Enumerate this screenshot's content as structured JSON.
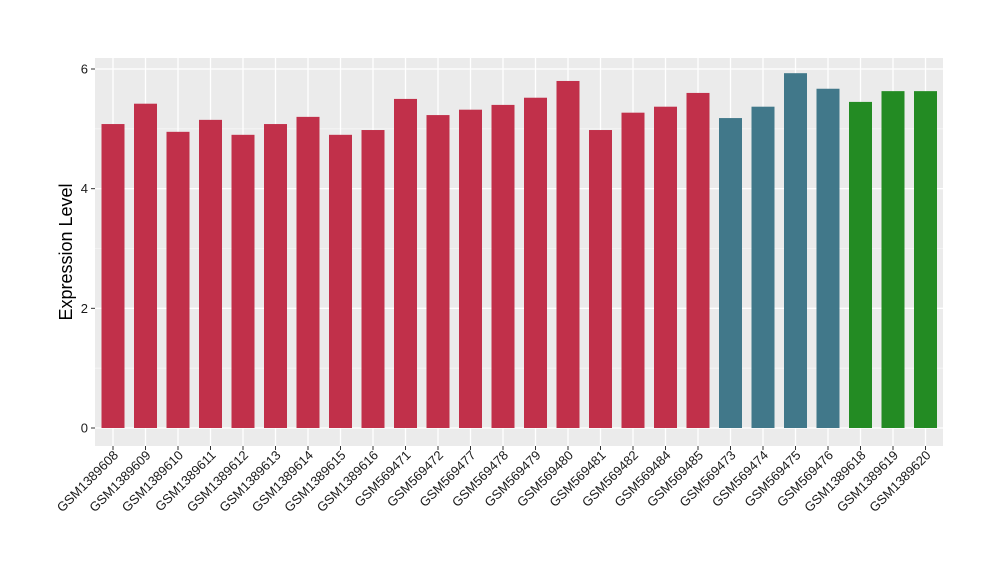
{
  "chart_data": {
    "type": "bar",
    "ylabel": "Expression Level",
    "xlabel": "",
    "ylim": [
      0,
      6.2
    ],
    "yticks": [
      0,
      2,
      4,
      6
    ],
    "grid": true,
    "legend": "none",
    "panel_background": "#EBEBEB",
    "categories": [
      "GSM1389608",
      "GSM1389609",
      "GSM1389610",
      "GSM1389611",
      "GSM1389612",
      "GSM1389613",
      "GSM1389614",
      "GSM1389615",
      "GSM1389616",
      "GSM569471",
      "GSM569472",
      "GSM569477",
      "GSM569478",
      "GSM569479",
      "GSM569480",
      "GSM569481",
      "GSM569482",
      "GSM569484",
      "GSM569485",
      "GSM569473",
      "GSM569474",
      "GSM569475",
      "GSM569476",
      "GSM1389618",
      "GSM1389619",
      "GSM1389620"
    ],
    "values": [
      5.08,
      5.42,
      4.95,
      5.15,
      4.9,
      5.08,
      5.2,
      4.9,
      4.98,
      5.5,
      5.23,
      5.32,
      5.4,
      5.52,
      5.8,
      4.98,
      5.27,
      5.37,
      5.6,
      5.18,
      5.37,
      5.93,
      5.67,
      5.45,
      5.63,
      5.63
    ],
    "colors": [
      "#C1304A",
      "#C1304A",
      "#C1304A",
      "#C1304A",
      "#C1304A",
      "#C1304A",
      "#C1304A",
      "#C1304A",
      "#C1304A",
      "#C1304A",
      "#C1304A",
      "#C1304A",
      "#C1304A",
      "#C1304A",
      "#C1304A",
      "#C1304A",
      "#C1304A",
      "#C1304A",
      "#C1304A",
      "#41788A",
      "#41788A",
      "#41788A",
      "#41788A",
      "#238B23",
      "#238B23",
      "#238B23"
    ]
  }
}
